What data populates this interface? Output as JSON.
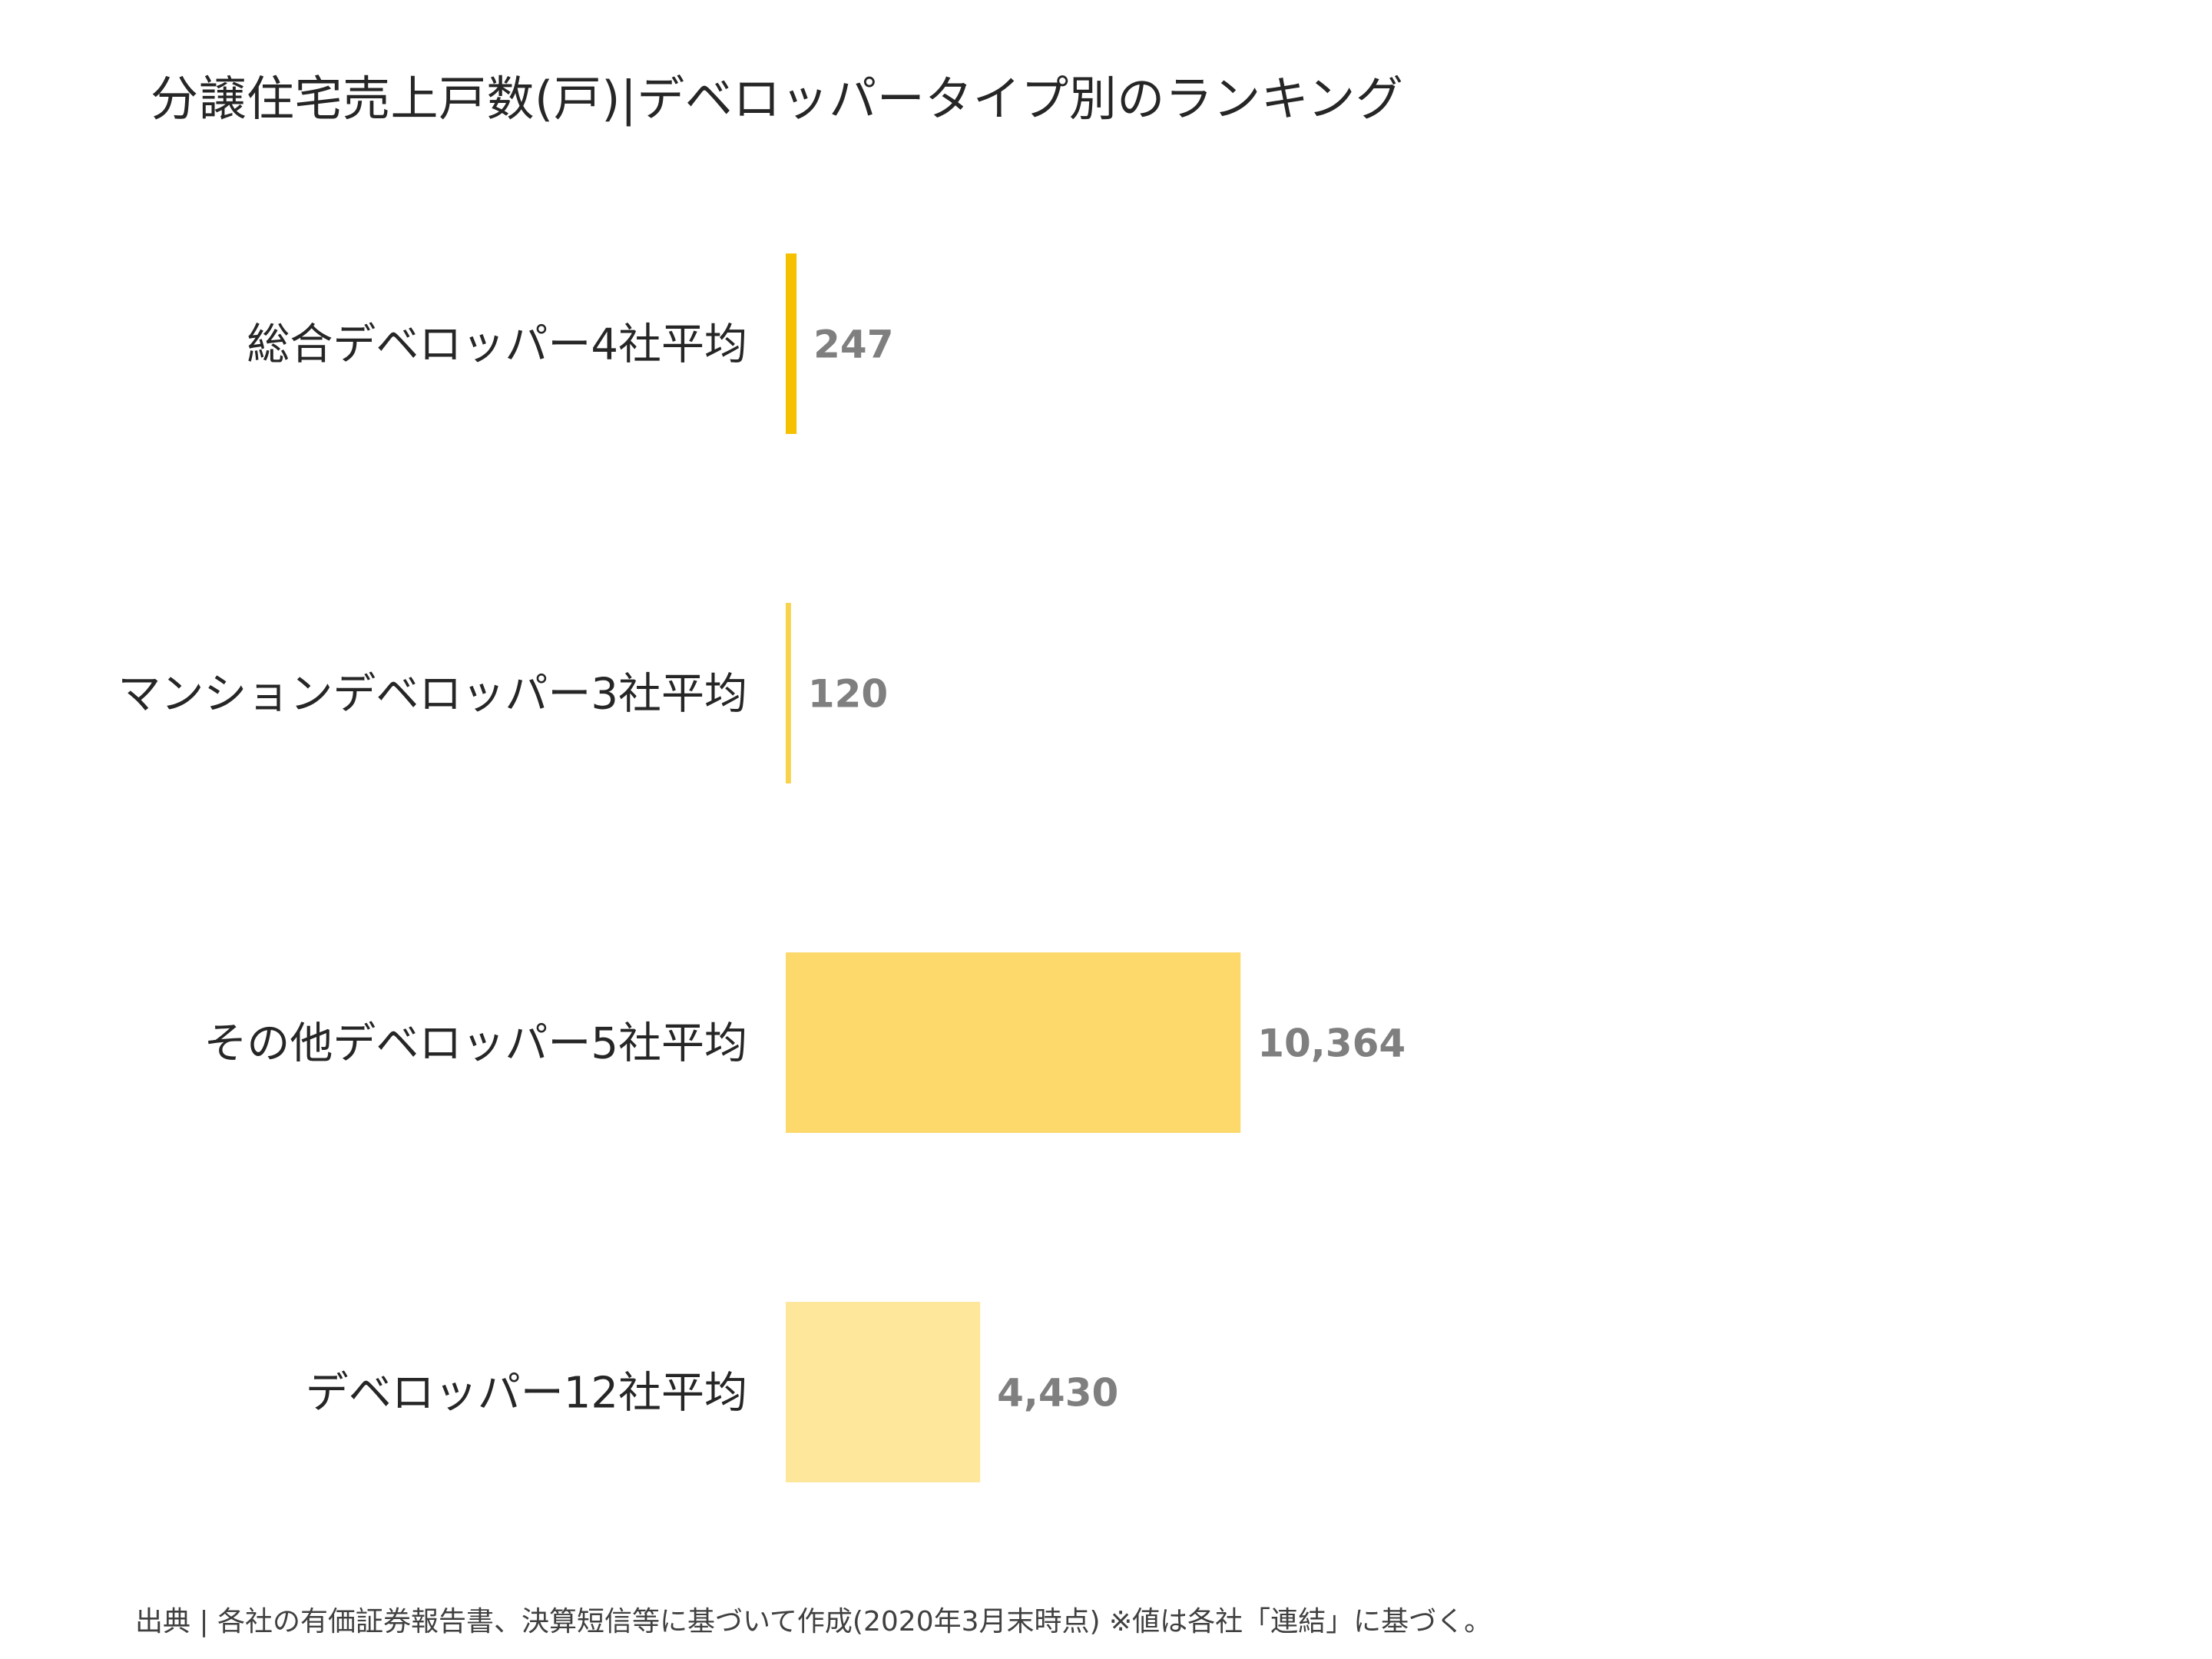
{
  "chart_data": {
    "type": "bar",
    "orientation": "horizontal",
    "title": "分譲住宅売上戸数(戸)|デベロッパータイプ別のランキング",
    "categories": [
      "総合デベロッパー4社平均",
      "マンションデベロッパー3社平均",
      "その他デベロッパー5社平均",
      "デベロッパー12社平均"
    ],
    "values": [
      247,
      120,
      10364,
      4430
    ],
    "value_labels": [
      "247",
      "120",
      "10,364",
      "4,430"
    ],
    "colors": [
      "#f5c000",
      "#f8d24a",
      "#fdd96b",
      "#fee69a"
    ],
    "xlim": [
      0,
      28000
    ],
    "grid": false,
    "legend": "none"
  },
  "source_note": "出典 | 各社の有価証券報告書、決算短信等に基づいて作成(2020年3月末時点) ※値は各社「連結」に基づく。"
}
